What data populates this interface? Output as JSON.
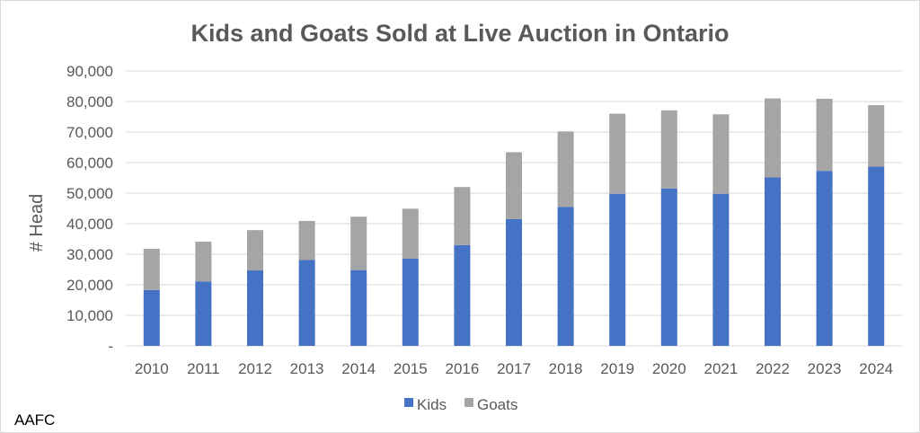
{
  "chart_data": {
    "type": "bar",
    "stacked": true,
    "title": "Kids and Goats Sold at Live Auction in Ontario",
    "xlabel": "",
    "ylabel": "# Head",
    "ylim": [
      0,
      90000
    ],
    "yticks": [
      "-",
      "10,000",
      "20,000",
      "30,000",
      "40,000",
      "50,000",
      "60,000",
      "70,000",
      "80,000",
      "90,000"
    ],
    "grid": true,
    "legend_position": "bottom",
    "categories": [
      "2010",
      "2011",
      "2012",
      "2013",
      "2014",
      "2015",
      "2016",
      "2017",
      "2018",
      "2019",
      "2020",
      "2021",
      "2022",
      "2023",
      "2024"
    ],
    "series": [
      {
        "name": "Kids",
        "color": "#4472c4",
        "values": [
          18300,
          21100,
          24700,
          28100,
          24800,
          28600,
          33000,
          41500,
          45500,
          49800,
          51500,
          49800,
          55200,
          57300,
          58700
        ]
      },
      {
        "name": "Goats",
        "color": "#a5a5a5",
        "values": [
          13500,
          13000,
          13200,
          12800,
          17500,
          16300,
          19000,
          21900,
          24700,
          26200,
          25600,
          26000,
          25800,
          23600,
          20100
        ]
      }
    ]
  },
  "footer": {
    "source": "AAFC"
  }
}
